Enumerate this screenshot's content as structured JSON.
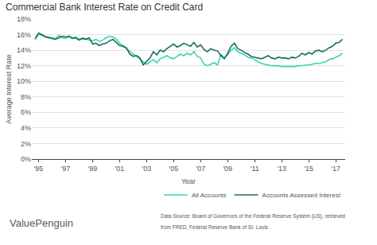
{
  "chart_data": {
    "type": "line",
    "title": "Commercial Bank Interest Rate on Credit Card",
    "x_label": "Year",
    "y_label": "Average Interest Rate",
    "x": [
      1994.75,
      1995,
      1995.25,
      1995.5,
      1995.75,
      1996,
      1996.25,
      1996.5,
      1996.75,
      1997,
      1997.25,
      1997.5,
      1997.75,
      1998,
      1998.25,
      1998.5,
      1998.75,
      1999,
      1999.25,
      1999.5,
      1999.75,
      2000,
      2000.25,
      2000.5,
      2000.75,
      2001,
      2001.25,
      2001.5,
      2001.75,
      2002,
      2002.25,
      2002.5,
      2002.75,
      2003,
      2003.25,
      2003.5,
      2003.75,
      2004,
      2004.25,
      2004.5,
      2004.75,
      2005,
      2005.25,
      2005.5,
      2005.75,
      2006,
      2006.25,
      2006.5,
      2006.75,
      2007,
      2007.25,
      2007.5,
      2007.75,
      2008,
      2008.25,
      2008.5,
      2008.75,
      2009,
      2009.25,
      2009.5,
      2009.75,
      2010,
      2010.25,
      2010.5,
      2010.75,
      2011,
      2011.25,
      2011.5,
      2011.75,
      2012,
      2012.25,
      2012.5,
      2012.75,
      2013,
      2013.25,
      2013.5,
      2013.75,
      2014,
      2014.25,
      2014.5,
      2014.75,
      2015,
      2015.25,
      2015.5,
      2015.75,
      2016,
      2016.25,
      2016.5,
      2016.75,
      2017,
      2017.25,
      2017.5
    ],
    "series": [
      {
        "name": "All Accounts",
        "color": "#3dd3b3",
        "values": [
          15.7,
          16.0,
          15.9,
          15.8,
          15.7,
          15.6,
          15.5,
          15.9,
          15.6,
          15.5,
          15.8,
          15.6,
          15.7,
          15.4,
          15.6,
          15.5,
          15.3,
          15.2,
          15.4,
          15.1,
          15.3,
          15.6,
          15.8,
          15.7,
          15.4,
          14.9,
          14.6,
          14.2,
          13.8,
          13.5,
          13.2,
          12.9,
          12.5,
          12.2,
          12.5,
          12.8,
          12.4,
          12.9,
          13.1,
          13.3,
          13.0,
          12.9,
          13.2,
          13.5,
          13.3,
          13.6,
          13.4,
          13.8,
          13.2,
          13.0,
          12.2,
          12.0,
          12.2,
          12.4,
          12.1,
          13.5,
          13.0,
          13.4,
          14.0,
          14.3,
          13.8,
          13.6,
          13.4,
          13.1,
          13.0,
          12.8,
          12.5,
          12.3,
          12.2,
          12.1,
          12.0,
          12.0,
          12.0,
          11.9,
          11.9,
          11.9,
          11.9,
          11.9,
          12.0,
          12.0,
          12.1,
          12.1,
          12.2,
          12.3,
          12.3,
          12.4,
          12.5,
          12.8,
          12.9,
          13.1,
          13.3,
          13.6
        ]
      },
      {
        "name": "Accounts Assessed Interest",
        "color": "#1b6e5d",
        "values": [
          15.4,
          16.2,
          16.0,
          15.7,
          15.6,
          15.5,
          15.4,
          15.6,
          15.8,
          15.7,
          15.8,
          15.5,
          15.6,
          15.3,
          15.5,
          15.4,
          15.6,
          14.8,
          14.9,
          14.6,
          14.8,
          14.9,
          15.2,
          15.4,
          15.0,
          14.6,
          14.5,
          14.3,
          13.5,
          13.2,
          13.3,
          13.0,
          12.1,
          12.6,
          13.0,
          13.8,
          13.4,
          14.0,
          13.8,
          14.2,
          14.5,
          14.8,
          14.4,
          14.6,
          14.9,
          14.7,
          14.5,
          15.0,
          14.4,
          14.7,
          14.1,
          13.8,
          14.2,
          14.0,
          13.9,
          13.3,
          12.9,
          13.6,
          14.5,
          14.9,
          14.2,
          14.0,
          13.7,
          13.5,
          13.2,
          13.1,
          13.0,
          12.9,
          13.1,
          13.3,
          13.0,
          12.9,
          13.1,
          13.0,
          13.0,
          12.9,
          13.1,
          13.0,
          13.2,
          13.6,
          13.4,
          13.7,
          13.5,
          13.9,
          14.0,
          13.8,
          14.0,
          14.3,
          14.5,
          14.9,
          15.0,
          15.4
        ]
      }
    ],
    "xlim": [
      1994.5,
      2017.7
    ],
    "xticks": [
      {
        "value": 1995,
        "label": "'95"
      },
      {
        "value": 1997,
        "label": "'97"
      },
      {
        "value": 1999,
        "label": "'99"
      },
      {
        "value": 2001,
        "label": "'01"
      },
      {
        "value": 2003,
        "label": "'03"
      },
      {
        "value": 2005,
        "label": "'05"
      },
      {
        "value": 2007,
        "label": "'07"
      },
      {
        "value": 2009,
        "label": "'09"
      },
      {
        "value": 2011,
        "label": "'11"
      },
      {
        "value": 2013,
        "label": "'13"
      },
      {
        "value": 2015,
        "label": "'15"
      },
      {
        "value": 2017,
        "label": "'17"
      }
    ],
    "ylim": [
      0,
      18
    ],
    "yticks": [
      {
        "value": 0,
        "label": "0%"
      },
      {
        "value": 2,
        "label": "2%"
      },
      {
        "value": 4,
        "label": "4%"
      },
      {
        "value": 6,
        "label": "6%"
      },
      {
        "value": 8,
        "label": "8%"
      },
      {
        "value": 10,
        "label": "10%"
      },
      {
        "value": 12,
        "label": "12%"
      },
      {
        "value": 14,
        "label": "14%"
      },
      {
        "value": 16,
        "label": "16%"
      },
      {
        "value": 18,
        "label": "18%"
      }
    ],
    "grid": true,
    "legend": "bottom right",
    "annotations": [
      "ValuePenguin",
      "Data Source: Board of Governors of the Federal Reserve System (US), retrieved",
      "from FRED, Federal Reserve Bank of St. Louis"
    ]
  }
}
